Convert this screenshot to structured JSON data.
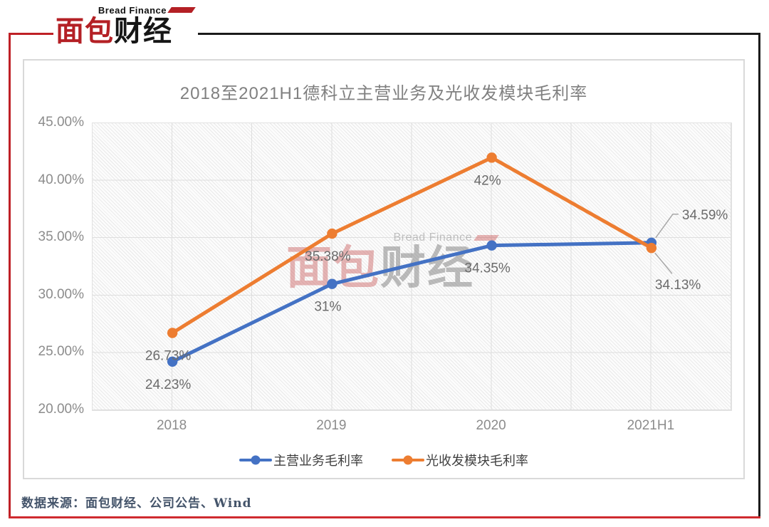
{
  "logo": {
    "brand_en": "Bread Finance",
    "brand_cn_part1": "面包",
    "brand_cn_part2": "财经"
  },
  "watermark": {
    "en": "Bread Finance",
    "cn_part1": "面包",
    "cn_part2": "财经"
  },
  "footer": {
    "source_text": "数据来源：面包财经、公司公告、Wind"
  },
  "chart_data": {
    "type": "line",
    "title": "2018至2021H1德科立主营业务及光收发模块毛利率",
    "categories": [
      "2018",
      "2019",
      "2020",
      "2021H1"
    ],
    "y_axis": {
      "min": 20,
      "max": 45,
      "step": 5,
      "tick_labels": [
        "45.00%",
        "40.00%",
        "35.00%",
        "30.00%",
        "25.00%",
        "20.00%"
      ]
    },
    "grid": {
      "horizontal": true,
      "vertical": true
    },
    "legend_position": "bottom",
    "series": [
      {
        "name": "主营业务毛利率",
        "color": "#4472C4",
        "values": [
          24.23,
          31,
          34.35,
          34.59
        ],
        "labels": [
          "24.23%",
          "31%",
          "34.35%",
          "34.59%"
        ],
        "label_placements": [
          "below",
          "below",
          "below",
          "callout-up"
        ]
      },
      {
        "name": "光收发模块毛利率",
        "color": "#ED7D31",
        "values": [
          26.73,
          35.38,
          42,
          34.13
        ],
        "labels": [
          "26.73%",
          "35.38%",
          "42%",
          "34.13%"
        ],
        "label_placements": [
          "below",
          "below",
          "below",
          "callout-down"
        ]
      }
    ]
  }
}
